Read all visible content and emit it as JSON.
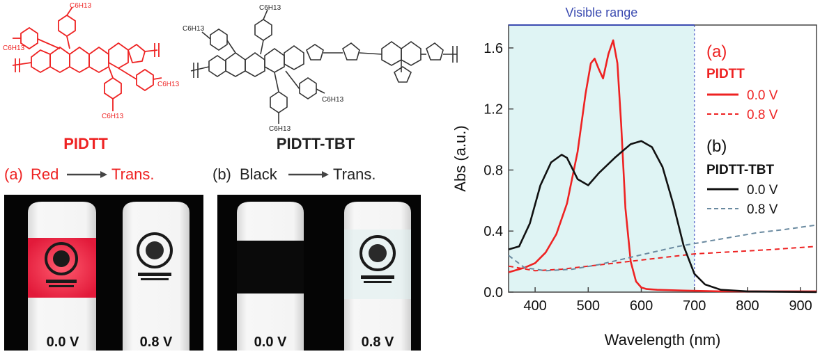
{
  "structures": {
    "pidtt": {
      "label": "PIDTT",
      "substituent": "C6H13",
      "color": "#ee2222"
    },
    "pidtt_tbt": {
      "label": "PIDTT-TBT",
      "substituent": "C6H13",
      "color": "#222222"
    }
  },
  "transitions": {
    "a": {
      "prefix": "(a)",
      "from": "Red",
      "to": "Trans."
    },
    "b": {
      "prefix": "(b)",
      "from": "Black",
      "to": "Trans."
    }
  },
  "device_photos": [
    {
      "id": "a-0",
      "voltage_label": "0.0 V",
      "state": "red"
    },
    {
      "id": "a-08",
      "voltage_label": "0.8 V",
      "state": "transparent"
    },
    {
      "id": "b-0",
      "voltage_label": "0.0 V",
      "state": "black"
    },
    {
      "id": "b-08",
      "voltage_label": "0.8 V",
      "state": "transparent"
    }
  ],
  "colors": {
    "red": "#ee2222",
    "black": "#111111",
    "gray_dash": "#6a8aa0",
    "visible_fill": "#dff4f4",
    "axis_blue": "#4a5ab8",
    "visible_line": "#6a7ad0"
  },
  "chart_data": {
    "type": "line",
    "title": "Visible range",
    "xlabel": "Wavelength (nm)",
    "ylabel": "Abs (a.u.)",
    "xlim": [
      350,
      930
    ],
    "ylim": [
      0,
      1.75
    ],
    "xticks": [
      400,
      500,
      600,
      700,
      800,
      900
    ],
    "yticks": [
      0.0,
      0.4,
      0.8,
      1.2,
      1.6
    ],
    "ytick_labels": [
      "0.0",
      "0.4",
      "0.8",
      "1.2",
      "1.6"
    ],
    "visible_range": [
      350,
      700
    ],
    "legend": {
      "group_a_label": "(a)",
      "group_a_name": "PIDTT",
      "group_b_label": "(b)",
      "group_b_name": "PIDTT-TBT"
    },
    "series": [
      {
        "name": "0.0 V",
        "group": "PIDTT",
        "style": "solid",
        "color": "#ee2222",
        "x": [
          350,
          380,
          400,
          420,
          440,
          460,
          480,
          495,
          505,
          512,
          520,
          528,
          538,
          547,
          555,
          562,
          570,
          580,
          590,
          600,
          610,
          630,
          680,
          750,
          930
        ],
        "y": [
          0.13,
          0.16,
          0.19,
          0.26,
          0.38,
          0.58,
          0.92,
          1.3,
          1.5,
          1.53,
          1.46,
          1.4,
          1.56,
          1.65,
          1.5,
          1.1,
          0.55,
          0.2,
          0.07,
          0.03,
          0.02,
          0.015,
          0.01,
          0.005,
          0.005
        ]
      },
      {
        "name": "0.8 V",
        "group": "PIDTT",
        "style": "dashed",
        "color": "#ee2222",
        "x": [
          350,
          400,
          450,
          500,
          550,
          600,
          650,
          700,
          750,
          800,
          850,
          930
        ],
        "y": [
          0.17,
          0.14,
          0.15,
          0.17,
          0.19,
          0.21,
          0.23,
          0.25,
          0.26,
          0.27,
          0.28,
          0.3
        ]
      },
      {
        "name": "0.0 V",
        "group": "PIDTT-TBT",
        "style": "solid",
        "color": "#111111",
        "x": [
          350,
          370,
          390,
          410,
          430,
          450,
          460,
          480,
          500,
          520,
          550,
          580,
          600,
          620,
          640,
          660,
          680,
          700,
          720,
          750,
          800,
          930
        ],
        "y": [
          0.28,
          0.3,
          0.45,
          0.7,
          0.85,
          0.9,
          0.88,
          0.74,
          0.7,
          0.78,
          0.88,
          0.97,
          0.99,
          0.95,
          0.82,
          0.58,
          0.3,
          0.12,
          0.05,
          0.015,
          0.005,
          0.0
        ]
      },
      {
        "name": "0.8 V",
        "group": "PIDTT-TBT",
        "style": "dashed",
        "color": "#6a8aa0",
        "x": [
          350,
          380,
          420,
          470,
          520,
          570,
          620,
          670,
          720,
          770,
          820,
          870,
          930
        ],
        "y": [
          0.24,
          0.16,
          0.14,
          0.15,
          0.18,
          0.22,
          0.26,
          0.3,
          0.33,
          0.36,
          0.39,
          0.41,
          0.44
        ]
      }
    ]
  }
}
